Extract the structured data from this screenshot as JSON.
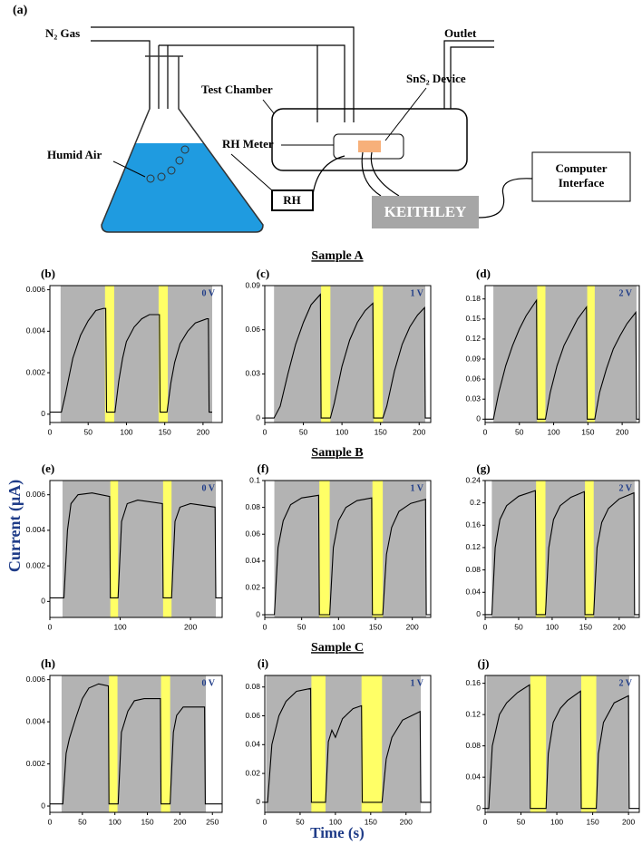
{
  "diagram": {
    "panel_label": "(a)",
    "gas": "N₂ Gas",
    "outlet": "Outlet",
    "chamber": "Test Chamber",
    "device": "SnS₂ Device",
    "humid": "Humid Air",
    "rh_meter": "RH Meter",
    "rh": "RH",
    "keithley": "KEITHLEY",
    "computer": [
      "Computer",
      "Interface"
    ]
  },
  "section_titles": [
    "Sample A",
    "Sample B",
    "Sample C"
  ],
  "y_label": "Current (μA)",
  "x_label": "Time (s)",
  "chart_data": [
    {
      "type": "line",
      "label": "(b)",
      "annotation": "0 V",
      "color": "#000000",
      "xlim": [
        0,
        225
      ],
      "xticks": [
        0,
        50,
        100,
        150,
        200
      ],
      "ylim": [
        -0.0004,
        0.0062
      ],
      "yticks": [
        0,
        0.002,
        0.004,
        0.006
      ],
      "regions": [
        {
          "start": 14,
          "end": 212,
          "color": "#b3b3b3"
        },
        {
          "start": 72,
          "end": 84,
          "color": "#ffff66"
        },
        {
          "start": 142,
          "end": 154,
          "color": "#ffff66"
        }
      ],
      "x": [
        0,
        15,
        20,
        25,
        30,
        40,
        50,
        60,
        70,
        73,
        74,
        85,
        90,
        95,
        100,
        110,
        120,
        130,
        140,
        143,
        144,
        153,
        158,
        163,
        170,
        180,
        190,
        205,
        207,
        208,
        212
      ],
      "values": [
        0.0001,
        0.0001,
        0.0009,
        0.0018,
        0.0027,
        0.0038,
        0.0045,
        0.005,
        0.0051,
        0.0051,
        0.0001,
        0.0001,
        0.0016,
        0.0027,
        0.0035,
        0.0042,
        0.0046,
        0.0048,
        0.0048,
        0.0048,
        0.0001,
        0.0001,
        0.0015,
        0.0025,
        0.0034,
        0.004,
        0.0044,
        0.0046,
        0.0046,
        0.0001,
        0.0001
      ]
    },
    {
      "type": "line",
      "label": "(c)",
      "annotation": "1 V",
      "color": "#000000",
      "xlim": [
        0,
        215
      ],
      "xticks": [
        0,
        50,
        100,
        150,
        200
      ],
      "ylim": [
        -0.003,
        0.09
      ],
      "yticks": [
        0,
        0.03,
        0.06,
        0.09
      ],
      "regions": [
        {
          "start": 12,
          "end": 208,
          "color": "#b3b3b3"
        },
        {
          "start": 73,
          "end": 85,
          "color": "#ffff66"
        },
        {
          "start": 141,
          "end": 153,
          "color": "#ffff66"
        }
      ],
      "x": [
        0,
        12,
        20,
        30,
        40,
        50,
        60,
        72,
        73,
        85,
        90,
        100,
        110,
        120,
        130,
        140,
        141,
        153,
        158,
        168,
        178,
        188,
        198,
        207,
        208,
        215
      ],
      "values": [
        0,
        0,
        0.008,
        0.03,
        0.05,
        0.065,
        0.077,
        0.084,
        0,
        0,
        0.01,
        0.035,
        0.053,
        0.065,
        0.073,
        0.078,
        0,
        0,
        0.008,
        0.032,
        0.05,
        0.062,
        0.07,
        0.075,
        0,
        0
      ]
    },
    {
      "type": "line",
      "label": "(d)",
      "annotation": "2 V",
      "color": "#000000",
      "xlim": [
        0,
        225
      ],
      "xticks": [
        0,
        50,
        100,
        150,
        200
      ],
      "ylim": [
        -0.005,
        0.2
      ],
      "yticks": [
        0,
        0.03,
        0.06,
        0.09,
        0.12,
        0.15,
        0.18
      ],
      "regions": [
        {
          "start": 12,
          "end": 221,
          "color": "#b3b3b3"
        },
        {
          "start": 76,
          "end": 88,
          "color": "#ffff66"
        },
        {
          "start": 149,
          "end": 160,
          "color": "#ffff66"
        }
      ],
      "x": [
        0,
        12,
        20,
        30,
        40,
        50,
        60,
        75,
        76,
        88,
        95,
        105,
        115,
        125,
        135,
        148,
        149,
        160,
        167,
        177,
        187,
        197,
        207,
        220,
        221,
        225
      ],
      "values": [
        0,
        0,
        0.04,
        0.08,
        0.11,
        0.135,
        0.155,
        0.178,
        0,
        0,
        0.04,
        0.08,
        0.11,
        0.13,
        0.15,
        0.168,
        0,
        0,
        0.04,
        0.075,
        0.105,
        0.125,
        0.143,
        0.16,
        0,
        0
      ]
    },
    {
      "type": "line",
      "label": "(e)",
      "annotation": "0 V",
      "color": "#000000",
      "xlim": [
        0,
        245
      ],
      "xticks": [
        0,
        100,
        200
      ],
      "ylim": [
        -0.0009,
        0.0068
      ],
      "yticks": [
        0,
        0.002,
        0.004,
        0.006
      ],
      "regions": [
        {
          "start": 18,
          "end": 236,
          "color": "#b3b3b3"
        },
        {
          "start": 86,
          "end": 97,
          "color": "#ffff66"
        },
        {
          "start": 161,
          "end": 173,
          "color": "#ffff66"
        }
      ],
      "x": [
        0,
        20,
        25,
        30,
        40,
        60,
        85,
        86,
        97,
        102,
        110,
        125,
        160,
        161,
        173,
        178,
        185,
        200,
        235,
        236,
        245
      ],
      "values": [
        0.0002,
        0.0002,
        0.004,
        0.0055,
        0.006,
        0.0061,
        0.0059,
        0.0002,
        0.0002,
        0.0045,
        0.0055,
        0.0057,
        0.0055,
        0.0002,
        0.0002,
        0.0045,
        0.0053,
        0.0055,
        0.0053,
        0.0002,
        0.0002
      ]
    },
    {
      "type": "line",
      "label": "(f)",
      "annotation": "1 V",
      "color": "#000000",
      "xlim": [
        0,
        225
      ],
      "xticks": [
        0,
        50,
        100,
        150,
        200
      ],
      "ylim": [
        -0.002,
        0.1
      ],
      "yticks": [
        0,
        0.02,
        0.04,
        0.06,
        0.08,
        0.1
      ],
      "regions": [
        {
          "start": 13,
          "end": 219,
          "color": "#b3b3b3"
        },
        {
          "start": 74,
          "end": 88,
          "color": "#ffff66"
        },
        {
          "start": 146,
          "end": 160,
          "color": "#ffff66"
        }
      ],
      "x": [
        0,
        13,
        18,
        25,
        35,
        50,
        73,
        74,
        88,
        93,
        100,
        110,
        125,
        145,
        146,
        160,
        165,
        172,
        182,
        198,
        218,
        219,
        225
      ],
      "values": [
        0,
        0,
        0.05,
        0.07,
        0.082,
        0.087,
        0.089,
        0,
        0,
        0.05,
        0.07,
        0.08,
        0.085,
        0.087,
        0,
        0,
        0.045,
        0.065,
        0.077,
        0.083,
        0.086,
        0,
        0
      ]
    },
    {
      "type": "line",
      "label": "(g)",
      "annotation": "2 V",
      "color": "#000000",
      "xlim": [
        0,
        230
      ],
      "xticks": [
        0,
        50,
        100,
        150,
        200
      ],
      "ylim": [
        -0.005,
        0.24
      ],
      "yticks": [
        0,
        0.04,
        0.08,
        0.12,
        0.16,
        0.2,
        0.24
      ],
      "regions": [
        {
          "start": 10,
          "end": 223,
          "color": "#b3b3b3"
        },
        {
          "start": 76,
          "end": 90,
          "color": "#ffff66"
        },
        {
          "start": 149,
          "end": 162,
          "color": "#ffff66"
        }
      ],
      "x": [
        0,
        10,
        15,
        22,
        32,
        50,
        75,
        76,
        90,
        95,
        102,
        112,
        128,
        148,
        149,
        162,
        167,
        174,
        184,
        200,
        222,
        223,
        230
      ],
      "values": [
        0,
        0,
        0.12,
        0.17,
        0.195,
        0.212,
        0.222,
        0,
        0,
        0.12,
        0.17,
        0.195,
        0.21,
        0.22,
        0,
        0,
        0.12,
        0.165,
        0.19,
        0.207,
        0.218,
        0,
        0
      ]
    },
    {
      "type": "line",
      "label": "(h)",
      "annotation": "0 V",
      "color": "#000000",
      "xlim": [
        0,
        265
      ],
      "xticks": [
        0,
        50,
        100,
        150,
        200,
        250
      ],
      "ylim": [
        -0.0003,
        0.0062
      ],
      "yticks": [
        0,
        0.002,
        0.004,
        0.006
      ],
      "regions": [
        {
          "start": 18,
          "end": 240,
          "color": "#b3b3b3"
        },
        {
          "start": 91,
          "end": 104,
          "color": "#ffff66"
        },
        {
          "start": 171,
          "end": 185,
          "color": "#ffff66"
        }
      ],
      "x": [
        0,
        20,
        25,
        30,
        40,
        50,
        60,
        75,
        90,
        91,
        105,
        110,
        120,
        130,
        145,
        170,
        171,
        185,
        190,
        195,
        205,
        238,
        239,
        265
      ],
      "values": [
        0.0001,
        0.0001,
        0.0025,
        0.0032,
        0.0042,
        0.0051,
        0.0056,
        0.0058,
        0.0057,
        0.0001,
        0.0001,
        0.0035,
        0.0045,
        0.005,
        0.0051,
        0.0051,
        0.0001,
        0.0001,
        0.0035,
        0.0043,
        0.0047,
        0.0047,
        0.0001,
        0.0001
      ]
    },
    {
      "type": "line",
      "label": "(i)",
      "annotation": "1 V",
      "color": "#000000",
      "xlim": [
        0,
        235
      ],
      "xticks": [
        0,
        50,
        100,
        150,
        200
      ],
      "ylim": [
        -0.007,
        0.088
      ],
      "yticks": [
        0,
        0.02,
        0.04,
        0.06,
        0.08
      ],
      "regions": [
        {
          "start": 2,
          "end": 221,
          "color": "#b3b3b3"
        },
        {
          "start": 66,
          "end": 86,
          "color": "#ffff66"
        },
        {
          "start": 137,
          "end": 166,
          "color": "#ffff66"
        }
      ],
      "x": [
        0,
        4,
        10,
        20,
        30,
        45,
        65,
        66,
        86,
        90,
        95,
        100,
        110,
        125,
        137,
        138,
        166,
        172,
        180,
        195,
        220,
        221,
        235
      ],
      "values": [
        0,
        0,
        0.04,
        0.06,
        0.07,
        0.077,
        0.079,
        0,
        0,
        0.042,
        0.05,
        0.045,
        0.058,
        0.065,
        0.067,
        0,
        0,
        0.03,
        0.045,
        0.057,
        0.063,
        0,
        0
      ]
    },
    {
      "type": "line",
      "label": "(j)",
      "annotation": "2 V",
      "color": "#000000",
      "xlim": [
        0,
        215
      ],
      "xticks": [
        0,
        50,
        100,
        150,
        200
      ],
      "ylim": [
        -0.005,
        0.17
      ],
      "yticks": [
        0,
        0.04,
        0.08,
        0.12,
        0.16
      ],
      "regions": [
        {
          "start": 2,
          "end": 201,
          "color": "#b3b3b3"
        },
        {
          "start": 63,
          "end": 85,
          "color": "#ffff66"
        },
        {
          "start": 134,
          "end": 155,
          "color": "#ffff66"
        }
      ],
      "x": [
        0,
        5,
        10,
        20,
        30,
        45,
        62,
        63,
        85,
        88,
        95,
        105,
        115,
        133,
        134,
        155,
        158,
        165,
        180,
        200,
        201,
        215
      ],
      "values": [
        0,
        0,
        0.08,
        0.12,
        0.135,
        0.148,
        0.158,
        0,
        0,
        0.07,
        0.11,
        0.128,
        0.138,
        0.15,
        0,
        0,
        0.07,
        0.11,
        0.135,
        0.144,
        0,
        0
      ]
    }
  ]
}
